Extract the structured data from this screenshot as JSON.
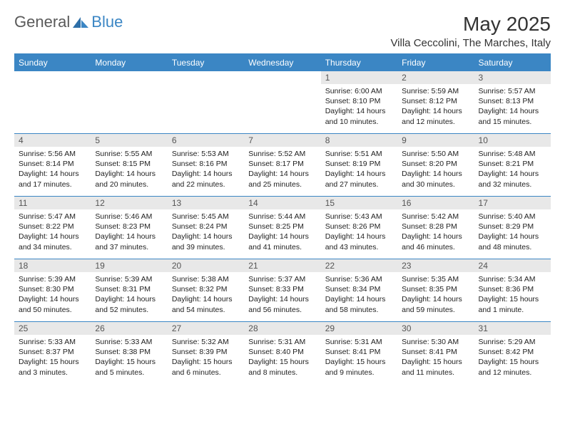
{
  "brand": {
    "text_general": "General",
    "text_blue": "Blue"
  },
  "title": "May 2025",
  "location": "Villa Ceccolini, The Marches, Italy",
  "colors": {
    "header_bg": "#3b86c4",
    "header_text": "#ffffff",
    "daynum_bg": "#e8e8e8",
    "daynum_text": "#555555",
    "body_text": "#222222",
    "border": "#3b86c4",
    "logo_gray": "#5a5a5a",
    "logo_blue": "#3b86c4"
  },
  "day_headers": [
    "Sunday",
    "Monday",
    "Tuesday",
    "Wednesday",
    "Thursday",
    "Friday",
    "Saturday"
  ],
  "weeks": [
    [
      null,
      null,
      null,
      null,
      {
        "n": "1",
        "sr": "Sunrise: 6:00 AM",
        "ss": "Sunset: 8:10 PM",
        "dl": "Daylight: 14 hours and 10 minutes."
      },
      {
        "n": "2",
        "sr": "Sunrise: 5:59 AM",
        "ss": "Sunset: 8:12 PM",
        "dl": "Daylight: 14 hours and 12 minutes."
      },
      {
        "n": "3",
        "sr": "Sunrise: 5:57 AM",
        "ss": "Sunset: 8:13 PM",
        "dl": "Daylight: 14 hours and 15 minutes."
      }
    ],
    [
      {
        "n": "4",
        "sr": "Sunrise: 5:56 AM",
        "ss": "Sunset: 8:14 PM",
        "dl": "Daylight: 14 hours and 17 minutes."
      },
      {
        "n": "5",
        "sr": "Sunrise: 5:55 AM",
        "ss": "Sunset: 8:15 PM",
        "dl": "Daylight: 14 hours and 20 minutes."
      },
      {
        "n": "6",
        "sr": "Sunrise: 5:53 AM",
        "ss": "Sunset: 8:16 PM",
        "dl": "Daylight: 14 hours and 22 minutes."
      },
      {
        "n": "7",
        "sr": "Sunrise: 5:52 AM",
        "ss": "Sunset: 8:17 PM",
        "dl": "Daylight: 14 hours and 25 minutes."
      },
      {
        "n": "8",
        "sr": "Sunrise: 5:51 AM",
        "ss": "Sunset: 8:19 PM",
        "dl": "Daylight: 14 hours and 27 minutes."
      },
      {
        "n": "9",
        "sr": "Sunrise: 5:50 AM",
        "ss": "Sunset: 8:20 PM",
        "dl": "Daylight: 14 hours and 30 minutes."
      },
      {
        "n": "10",
        "sr": "Sunrise: 5:48 AM",
        "ss": "Sunset: 8:21 PM",
        "dl": "Daylight: 14 hours and 32 minutes."
      }
    ],
    [
      {
        "n": "11",
        "sr": "Sunrise: 5:47 AM",
        "ss": "Sunset: 8:22 PM",
        "dl": "Daylight: 14 hours and 34 minutes."
      },
      {
        "n": "12",
        "sr": "Sunrise: 5:46 AM",
        "ss": "Sunset: 8:23 PM",
        "dl": "Daylight: 14 hours and 37 minutes."
      },
      {
        "n": "13",
        "sr": "Sunrise: 5:45 AM",
        "ss": "Sunset: 8:24 PM",
        "dl": "Daylight: 14 hours and 39 minutes."
      },
      {
        "n": "14",
        "sr": "Sunrise: 5:44 AM",
        "ss": "Sunset: 8:25 PM",
        "dl": "Daylight: 14 hours and 41 minutes."
      },
      {
        "n": "15",
        "sr": "Sunrise: 5:43 AM",
        "ss": "Sunset: 8:26 PM",
        "dl": "Daylight: 14 hours and 43 minutes."
      },
      {
        "n": "16",
        "sr": "Sunrise: 5:42 AM",
        "ss": "Sunset: 8:28 PM",
        "dl": "Daylight: 14 hours and 46 minutes."
      },
      {
        "n": "17",
        "sr": "Sunrise: 5:40 AM",
        "ss": "Sunset: 8:29 PM",
        "dl": "Daylight: 14 hours and 48 minutes."
      }
    ],
    [
      {
        "n": "18",
        "sr": "Sunrise: 5:39 AM",
        "ss": "Sunset: 8:30 PM",
        "dl": "Daylight: 14 hours and 50 minutes."
      },
      {
        "n": "19",
        "sr": "Sunrise: 5:39 AM",
        "ss": "Sunset: 8:31 PM",
        "dl": "Daylight: 14 hours and 52 minutes."
      },
      {
        "n": "20",
        "sr": "Sunrise: 5:38 AM",
        "ss": "Sunset: 8:32 PM",
        "dl": "Daylight: 14 hours and 54 minutes."
      },
      {
        "n": "21",
        "sr": "Sunrise: 5:37 AM",
        "ss": "Sunset: 8:33 PM",
        "dl": "Daylight: 14 hours and 56 minutes."
      },
      {
        "n": "22",
        "sr": "Sunrise: 5:36 AM",
        "ss": "Sunset: 8:34 PM",
        "dl": "Daylight: 14 hours and 58 minutes."
      },
      {
        "n": "23",
        "sr": "Sunrise: 5:35 AM",
        "ss": "Sunset: 8:35 PM",
        "dl": "Daylight: 14 hours and 59 minutes."
      },
      {
        "n": "24",
        "sr": "Sunrise: 5:34 AM",
        "ss": "Sunset: 8:36 PM",
        "dl": "Daylight: 15 hours and 1 minute."
      }
    ],
    [
      {
        "n": "25",
        "sr": "Sunrise: 5:33 AM",
        "ss": "Sunset: 8:37 PM",
        "dl": "Daylight: 15 hours and 3 minutes."
      },
      {
        "n": "26",
        "sr": "Sunrise: 5:33 AM",
        "ss": "Sunset: 8:38 PM",
        "dl": "Daylight: 15 hours and 5 minutes."
      },
      {
        "n": "27",
        "sr": "Sunrise: 5:32 AM",
        "ss": "Sunset: 8:39 PM",
        "dl": "Daylight: 15 hours and 6 minutes."
      },
      {
        "n": "28",
        "sr": "Sunrise: 5:31 AM",
        "ss": "Sunset: 8:40 PM",
        "dl": "Daylight: 15 hours and 8 minutes."
      },
      {
        "n": "29",
        "sr": "Sunrise: 5:31 AM",
        "ss": "Sunset: 8:41 PM",
        "dl": "Daylight: 15 hours and 9 minutes."
      },
      {
        "n": "30",
        "sr": "Sunrise: 5:30 AM",
        "ss": "Sunset: 8:41 PM",
        "dl": "Daylight: 15 hours and 11 minutes."
      },
      {
        "n": "31",
        "sr": "Sunrise: 5:29 AM",
        "ss": "Sunset: 8:42 PM",
        "dl": "Daylight: 15 hours and 12 minutes."
      }
    ]
  ]
}
